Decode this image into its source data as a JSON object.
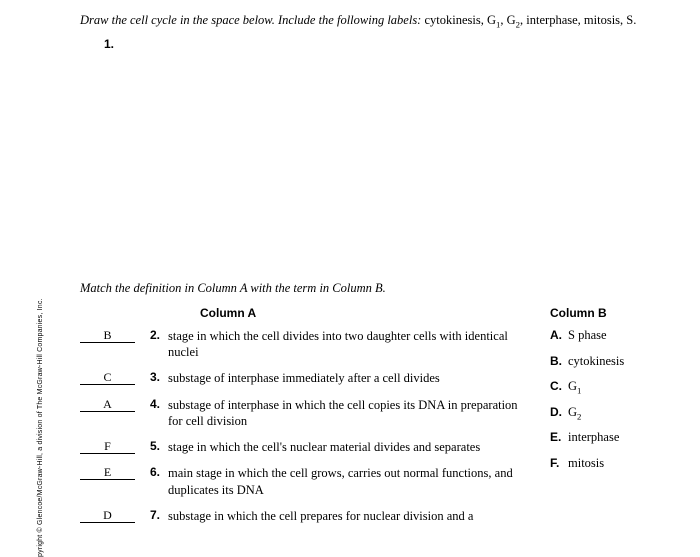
{
  "intro_prefix": "Draw the cell cycle in the space below. Include the following labels:",
  "intro_labels": "cytokinesis, G₁, G₂, interphase, mitosis, S.",
  "q1_label": "1.",
  "match_intro": "Match the definition in Column A with the term in Column B.",
  "col_a_header": "Column A",
  "col_b_header": "Column B",
  "questions": [
    {
      "ans": "B",
      "num": "2.",
      "def": "stage in which the cell divides into two daughter cells with identical nuclei"
    },
    {
      "ans": "C",
      "num": "3.",
      "def": "substage of interphase immediately after a cell divides"
    },
    {
      "ans": "A",
      "num": "4.",
      "def": "substage of interphase in which the cell copies its DNA in preparation for cell division"
    },
    {
      "ans": "F",
      "num": "5.",
      "def": "stage in which the cell's nuclear material divides and separates"
    },
    {
      "ans": "E",
      "num": "6.",
      "def": "main stage in which the cell grows, carries out normal functions, and duplicates its DNA"
    },
    {
      "ans": "D",
      "num": "7.",
      "def": "substage in which the cell prepares for nuclear division and a"
    }
  ],
  "column_b": [
    {
      "letter": "A.",
      "term": "S phase"
    },
    {
      "letter": "B.",
      "term": "cytokinesis"
    },
    {
      "letter": "C.",
      "term": "G₁"
    },
    {
      "letter": "D.",
      "term": "G₂"
    },
    {
      "letter": "E.",
      "term": "interphase"
    },
    {
      "letter": "F.",
      "term": "mitosis"
    }
  ],
  "copyright": "pyright © Glencoe/McGraw-Hill, a division of The McGraw-Hill Companies, Inc."
}
